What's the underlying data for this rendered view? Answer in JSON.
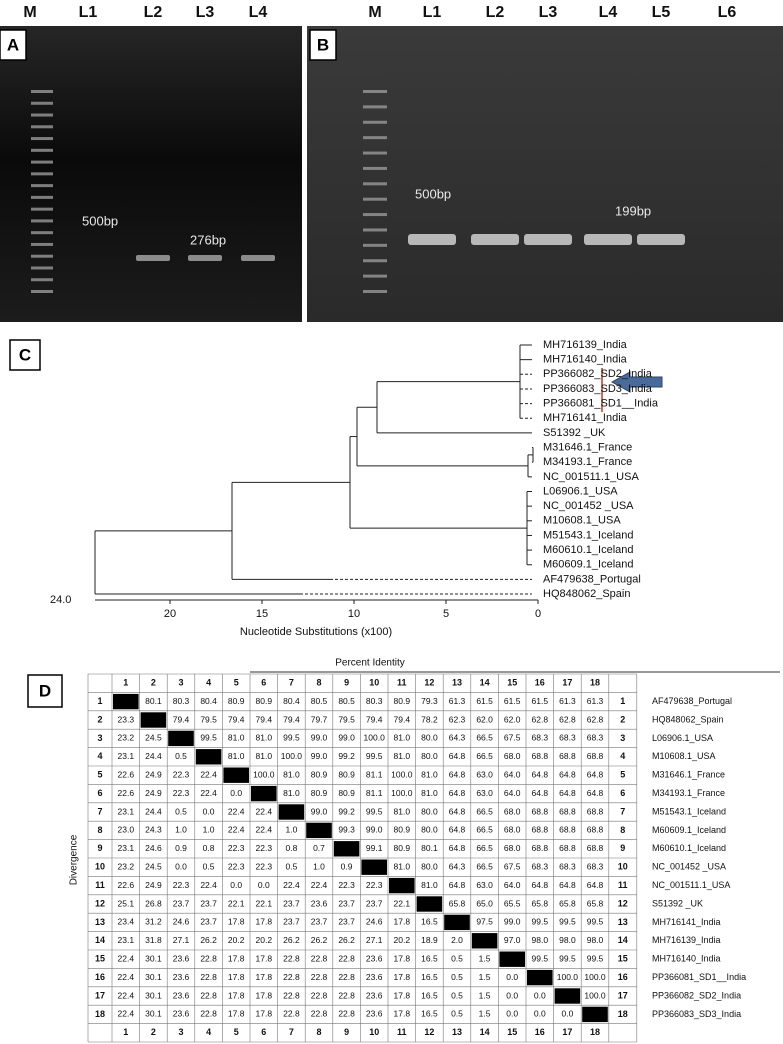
{
  "panels": {
    "A": {
      "label": "A",
      "lanes": [
        "M",
        "L1",
        "L2",
        "L3",
        "L4"
      ],
      "markers": [
        "500bp",
        "276bp"
      ]
    },
    "B": {
      "label": "B",
      "lanes": [
        "M",
        "L1",
        "L2",
        "L3",
        "L4",
        "L5",
        "L6"
      ],
      "markers": [
        "500bp",
        "199bp"
      ]
    },
    "C": {
      "label": "C",
      "leaves": [
        "MH716139_India",
        "MH716140_India",
        "PP366082_SD2_India",
        "PP366083_SD3_India",
        "PP366081_SD1__India",
        "MH716141_India",
        "S51392 _UK",
        "M31646.1_France",
        "M34193.1_France",
        "NC_001511.1_USA",
        "L06906.1_USA",
        "NC_001452 _USA",
        "M10608.1_USA",
        "M51543.1_Iceland",
        "M60610.1_Iceland",
        "M60609.1_Iceland",
        "AF479638_Portugal",
        "HQ848062_Spain"
      ],
      "axis": {
        "label": "Nucleotide Substitutions (x100)",
        "ticks": [
          20,
          15,
          10,
          5,
          0
        ],
        "root_label": "24.0"
      }
    },
    "D": {
      "label": "D",
      "title": "Percent Identity",
      "side_label": "Divergence",
      "columns": [
        1,
        2,
        3,
        4,
        5,
        6,
        7,
        8,
        9,
        10,
        11,
        12,
        13,
        14,
        15,
        16,
        17,
        18
      ],
      "rows": [
        {
          "number": 1,
          "name": "AF479638_Portugal",
          "cells": [
            null,
            "80.1",
            "80.3",
            "80.4",
            "80.9",
            "80.9",
            "80.4",
            "80.5",
            "80.5",
            "80.3",
            "80.9",
            "79.3",
            "61.3",
            "61.5",
            "61.5",
            "61.5",
            "61.3",
            "61.3"
          ]
        },
        {
          "number": 2,
          "name": "HQ848062_Spain",
          "cells": [
            "23.3",
            null,
            "79.4",
            "79.5",
            "79.4",
            "79.4",
            "79.4",
            "79.7",
            "79.5",
            "79.4",
            "79.4",
            "78.2",
            "62.3",
            "62.0",
            "62.0",
            "62.8",
            "62.8",
            "62.8"
          ]
        },
        {
          "number": 3,
          "name": "L06906.1_USA",
          "cells": [
            "23.2",
            "24.5",
            null,
            "99.5",
            "81.0",
            "81.0",
            "99.5",
            "99.0",
            "99.0",
            "100.0",
            "81.0",
            "80.0",
            "64.3",
            "66.5",
            "67.5",
            "68.3",
            "68.3",
            "68.3"
          ]
        },
        {
          "number": 4,
          "name": "M10608.1_USA",
          "cells": [
            "23.1",
            "24.4",
            "0.5",
            null,
            "81.0",
            "81.0",
            "100.0",
            "99.0",
            "99.2",
            "99.5",
            "81.0",
            "80.0",
            "64.8",
            "66.5",
            "68.0",
            "68.8",
            "68.8",
            "68.8"
          ]
        },
        {
          "number": 5,
          "name": "M31646.1_France",
          "cells": [
            "22.6",
            "24.9",
            "22.3",
            "22.4",
            null,
            "100.0",
            "81.0",
            "80.9",
            "80.9",
            "81.1",
            "100.0",
            "81.0",
            "64.8",
            "63.0",
            "64.0",
            "64.8",
            "64.8",
            "64.8"
          ]
        },
        {
          "number": 6,
          "name": "M34193.1_France",
          "cells": [
            "22.6",
            "24.9",
            "22.3",
            "22.4",
            "0.0",
            null,
            "81.0",
            "80.9",
            "80.9",
            "81.1",
            "100.0",
            "81.0",
            "64.8",
            "63.0",
            "64.0",
            "64.8",
            "64.8",
            "64.8"
          ]
        },
        {
          "number": 7,
          "name": "M51543.1_Iceland",
          "cells": [
            "23.1",
            "24.4",
            "0.5",
            "0.0",
            "22.4",
            "22.4",
            null,
            "99.0",
            "99.2",
            "99.5",
            "81.0",
            "80.0",
            "64.8",
            "66.5",
            "68.0",
            "68.8",
            "68.8",
            "68.8"
          ]
        },
        {
          "number": 8,
          "name": "M60609.1_Iceland",
          "cells": [
            "23.0",
            "24.3",
            "1.0",
            "1.0",
            "22.4",
            "22.4",
            "1.0",
            null,
            "99.3",
            "99.0",
            "80.9",
            "80.0",
            "64.8",
            "66.5",
            "68.0",
            "68.8",
            "68.8",
            "68.8"
          ]
        },
        {
          "number": 9,
          "name": "M60610.1_Iceland",
          "cells": [
            "23.1",
            "24.6",
            "0.9",
            "0.8",
            "22.3",
            "22.3",
            "0.8",
            "0.7",
            null,
            "99.1",
            "80.9",
            "80.1",
            "64.8",
            "66.5",
            "68.0",
            "68.8",
            "68.8",
            "68.8"
          ]
        },
        {
          "number": 10,
          "name": "NC_001452 _USA",
          "cells": [
            "23.2",
            "24.5",
            "0.0",
            "0.5",
            "22.3",
            "22.3",
            "0.5",
            "1.0",
            "0.9",
            null,
            "81.0",
            "80.0",
            "64.3",
            "66.5",
            "67.5",
            "68.3",
            "68.3",
            "68.3"
          ]
        },
        {
          "number": 11,
          "name": "NC_001511.1_USA",
          "cells": [
            "22.6",
            "24.9",
            "22.3",
            "22.4",
            "0.0",
            "0.0",
            "22.4",
            "22.4",
            "22.3",
            "22.3",
            null,
            "81.0",
            "64.8",
            "63.0",
            "64.0",
            "64.8",
            "64.8",
            "64.8"
          ]
        },
        {
          "number": 12,
          "name": "S51392 _UK",
          "cells": [
            "25.1",
            "26.8",
            "23.7",
            "23.7",
            "22.1",
            "22.1",
            "23.7",
            "23.6",
            "23.7",
            "23.7",
            "22.1",
            null,
            "65.8",
            "65.0",
            "65.5",
            "65.8",
            "65.8",
            "65.8"
          ]
        },
        {
          "number": 13,
          "name": "MH716141_India",
          "cells": [
            "23.4",
            "31.2",
            "24.6",
            "23.7",
            "17.8",
            "17.8",
            "23.7",
            "23.7",
            "23.7",
            "24.6",
            "17.8",
            "16.5",
            null,
            "97.5",
            "99.0",
            "99.5",
            "99.5",
            "99.5"
          ]
        },
        {
          "number": 14,
          "name": "MH716139_India",
          "cells": [
            "23.1",
            "31.8",
            "27.1",
            "26.2",
            "20.2",
            "20.2",
            "26.2",
            "26.2",
            "26.2",
            "27.1",
            "20.2",
            "18.9",
            "2.0",
            null,
            "97.0",
            "98.0",
            "98.0",
            "98.0"
          ]
        },
        {
          "number": 15,
          "name": "MH716140_India",
          "cells": [
            "22.4",
            "30.1",
            "23.6",
            "22.8",
            "17.8",
            "17.8",
            "22.8",
            "22.8",
            "22.8",
            "23.6",
            "17.8",
            "16.5",
            "0.5",
            "1.5",
            null,
            "99.5",
            "99.5",
            "99.5"
          ]
        },
        {
          "number": 16,
          "name": "PP366081_SD1__India",
          "cells": [
            "22.4",
            "30.1",
            "23.6",
            "22.8",
            "17.8",
            "17.8",
            "22.8",
            "22.8",
            "22.8",
            "23.6",
            "17.8",
            "16.5",
            "0.5",
            "1.5",
            "0.0",
            null,
            "100.0",
            "100.0"
          ]
        },
        {
          "number": 17,
          "name": "PP366082_SD2_India",
          "cells": [
            "22.4",
            "30.1",
            "23.6",
            "22.8",
            "17.8",
            "17.8",
            "22.8",
            "22.8",
            "22.8",
            "23.6",
            "17.8",
            "16.5",
            "0.5",
            "1.5",
            "0.0",
            "0.0",
            null,
            "100.0"
          ]
        },
        {
          "number": 18,
          "name": "PP366083_SD3_India",
          "cells": [
            "22.4",
            "30.1",
            "23.6",
            "22.8",
            "17.8",
            "17.8",
            "22.8",
            "22.8",
            "22.8",
            "23.6",
            "17.8",
            "16.5",
            "0.5",
            "1.5",
            "0.0",
            "0.0",
            "0.0",
            null
          ]
        }
      ]
    }
  }
}
